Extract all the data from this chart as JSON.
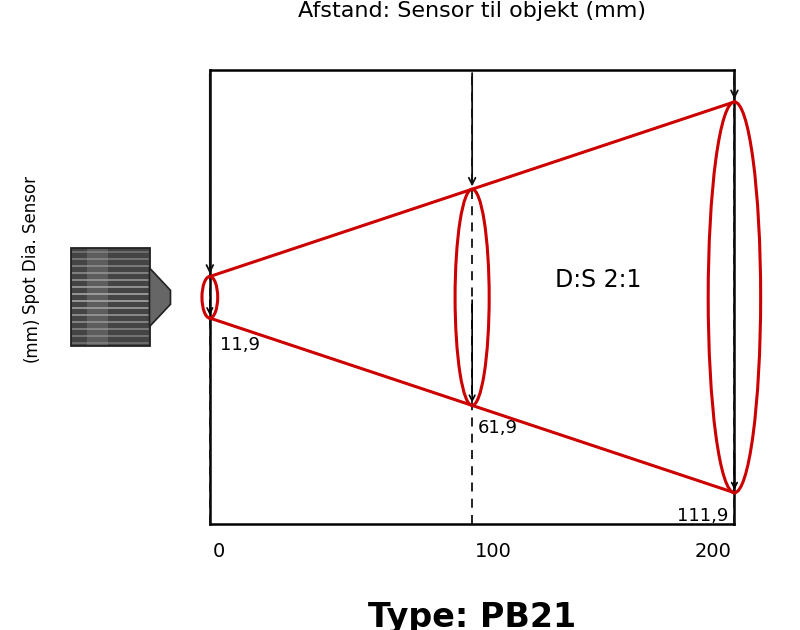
{
  "title": "Afstand: Sensor til objekt (mm)",
  "ylabel_line1": "Spot Dia. Sensor",
  "ylabel_line2": "(mm)",
  "type_label": "Type: PB21",
  "ds_label": "D:S 2:1",
  "x_ticks": [
    0,
    100,
    200
  ],
  "distances": [
    0,
    100,
    200
  ],
  "spot_radii": [
    5.95,
    30.95,
    55.95
  ],
  "label_values": [
    "11,9",
    "61,9",
    "111,9"
  ],
  "cone_color": "#cc0000",
  "dashed_color": "#111111",
  "background_color": "#ffffff",
  "sensor_color_dark": "#555555",
  "sensor_color_mid": "#888888",
  "sensor_color_light": "#bbbbbb",
  "cone_linewidth": 2.2,
  "ellipse_linewidth": 2.2,
  "border_linewidth": 1.8
}
